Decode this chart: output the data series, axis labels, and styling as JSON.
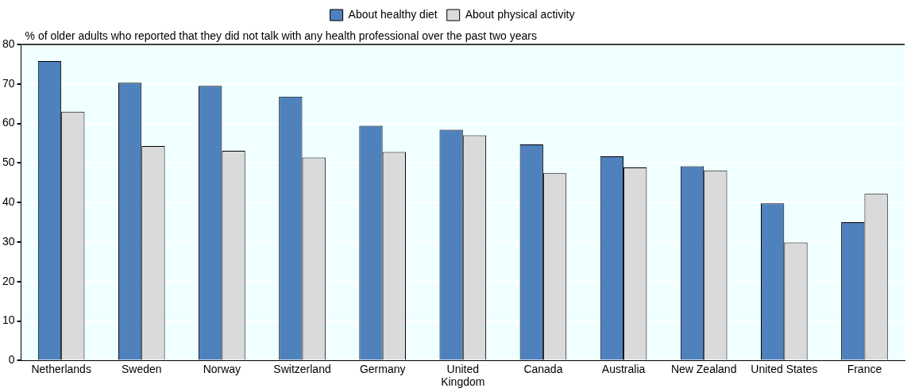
{
  "chart_data": {
    "type": "bar",
    "ylabel": "% of older adults who reported that they did not talk with any health professional over the past two years",
    "categories": [
      "Netherlands",
      "Sweden",
      "Norway",
      "Switzerland",
      "Germany",
      "United Kingdom",
      "Canada",
      "Australia",
      "New Zealand",
      "United States",
      "France"
    ],
    "series": [
      {
        "name": "About healthy diet",
        "color": "#4f81bd",
        "values": [
          75.8,
          70.3,
          69.5,
          66.8,
          59.4,
          58.4,
          54.7,
          51.7,
          49.2,
          39.8,
          35.0
        ]
      },
      {
        "name": "About physical activity",
        "color": "#dadada",
        "values": [
          63.0,
          54.3,
          53.1,
          51.4,
          52.8,
          57.0,
          47.4,
          48.9,
          48.1,
          29.9,
          42.2
        ]
      }
    ],
    "ylim": [
      0,
      80
    ],
    "yticks": [
      0,
      10,
      20,
      30,
      40,
      50,
      60,
      70,
      80
    ],
    "grid": "y",
    "legend": "top"
  }
}
